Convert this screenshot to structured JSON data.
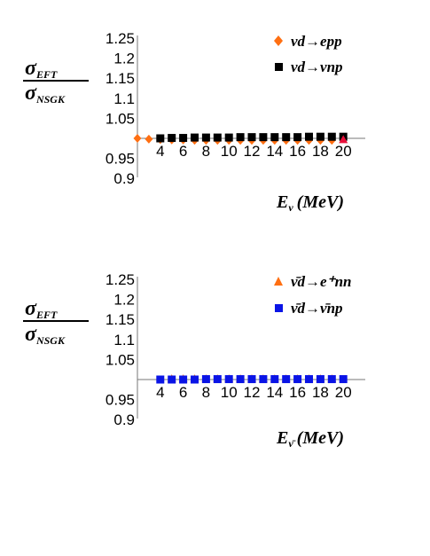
{
  "chart_data": [
    {
      "type": "scatter",
      "ylabel_num": "σ",
      "ylabel_num_sub": "EFT",
      "ylabel_den": "σ",
      "ylabel_den_sub": "NSGK",
      "xlabel_main": "E",
      "xlabel_sub": "ν",
      "xlabel_units": "(MeV)",
      "yticks": [
        "1.25",
        "1.2",
        "1.15",
        "1.1",
        "1.05",
        "0.95",
        "0.9"
      ],
      "ytick_values": [
        1.25,
        1.2,
        1.15,
        1.1,
        1.05,
        0.95,
        0.9
      ],
      "xticks": [
        "4",
        "6",
        "8",
        "10",
        "12",
        "14",
        "16",
        "18",
        "20"
      ],
      "xtick_values": [
        4,
        6,
        8,
        10,
        12,
        14,
        16,
        18,
        20
      ],
      "xlim": [
        2,
        20
      ],
      "ylim": [
        0.9,
        1.25
      ],
      "axis_y_at": 1.0,
      "series": [
        {
          "name": "νd→epp",
          "marker": "diamond",
          "color": "#ff6f12",
          "x": [
            2,
            3,
            4,
            5,
            6,
            7,
            8,
            9,
            10,
            11,
            12,
            13,
            14,
            15,
            16,
            17,
            18,
            19
          ],
          "y": [
            1.0,
            0.998,
            0.997,
            0.996,
            0.996,
            0.995,
            0.995,
            0.995,
            0.995,
            0.995,
            0.995,
            0.995,
            0.995,
            0.995,
            0.995,
            0.995,
            0.995,
            0.995
          ]
        },
        {
          "name": "νd→νnp",
          "marker": "square",
          "color": "#000000",
          "x": [
            4,
            5,
            6,
            7,
            8,
            9,
            10,
            11,
            12,
            13,
            14,
            15,
            16,
            17,
            18,
            19,
            20
          ],
          "y": [
            1.0,
            1.001,
            1.001,
            1.002,
            1.002,
            1.002,
            1.002,
            1.003,
            1.003,
            1.003,
            1.003,
            1.003,
            1.003,
            1.004,
            1.004,
            1.004,
            1.004
          ]
        },
        {
          "name": "",
          "marker": "triangle",
          "color": "#e8103a",
          "x": [
            20
          ],
          "y": [
            0.997
          ]
        }
      ]
    },
    {
      "type": "scatter",
      "ylabel_num": "σ",
      "ylabel_num_sub": "EFT",
      "ylabel_den": "σ",
      "ylabel_den_sub": "NSGK",
      "xlabel_main": "E",
      "xlabel_sub": "ν̄",
      "xlabel_units": "(MeV)",
      "yticks": [
        "1.25",
        "1.2",
        "1.15",
        "1.1",
        "1.05",
        "0.95",
        "0.9"
      ],
      "ytick_values": [
        1.25,
        1.2,
        1.15,
        1.1,
        1.05,
        0.95,
        0.9
      ],
      "xticks": [
        "4",
        "6",
        "8",
        "10",
        "12",
        "14",
        "16",
        "18",
        "20"
      ],
      "xtick_values": [
        4,
        6,
        8,
        10,
        12,
        14,
        16,
        18,
        20
      ],
      "xlim": [
        2,
        20
      ],
      "ylim": [
        0.9,
        1.25
      ],
      "axis_y_at": 1.0,
      "series": [
        {
          "name": "ν̄d→e⁺nn",
          "marker": "triangle",
          "color": "#ff6f12",
          "x": [
            5,
            6,
            7,
            8,
            9,
            10,
            11,
            12,
            13,
            14,
            15,
            16,
            17,
            18,
            19
          ],
          "y": [
            1.002,
            1.002,
            1.002,
            1.002,
            1.002,
            1.002,
            1.002,
            1.002,
            1.002,
            1.002,
            1.002,
            1.002,
            1.002,
            1.002,
            1.002
          ]
        },
        {
          "name": "ν̄d→ν̄np",
          "marker": "square",
          "color": "#0a14e6",
          "x": [
            4,
            5,
            6,
            7,
            8,
            9,
            10,
            11,
            12,
            13,
            14,
            15,
            16,
            17,
            18,
            19,
            20
          ],
          "y": [
            1.0,
            1.0,
            1.0,
            1.0,
            1.001,
            1.001,
            1.001,
            1.001,
            1.001,
            1.001,
            1.001,
            1.001,
            1.001,
            1.001,
            1.001,
            1.001,
            1.001
          ]
        }
      ]
    }
  ]
}
